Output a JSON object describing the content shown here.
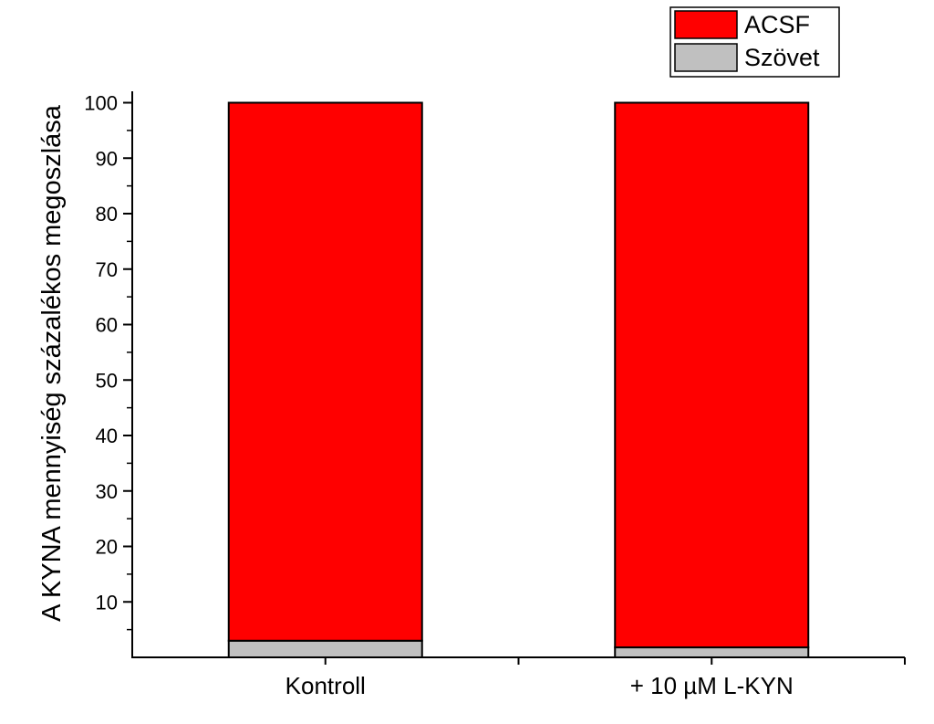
{
  "chart_data": {
    "type": "bar",
    "stacked": true,
    "categories": [
      "Kontroll",
      "+ 10 µM L-KYN"
    ],
    "series": [
      {
        "name": "Szövet",
        "values": [
          3,
          1.8
        ],
        "color": "#c0c0c0"
      },
      {
        "name": "ACSF",
        "values": [
          97,
          98.2
        ],
        "color": "#ff0000"
      }
    ],
    "ylabel": "A KYNA mennyiség százalékos megoszlása",
    "xlabel": "",
    "ylim": [
      0,
      102
    ],
    "yticks": [
      10,
      20,
      30,
      40,
      50,
      60,
      70,
      80,
      90,
      100
    ],
    "legend": {
      "position": "top-right",
      "order": [
        "ACSF",
        "Szövet"
      ]
    },
    "grid": false
  }
}
